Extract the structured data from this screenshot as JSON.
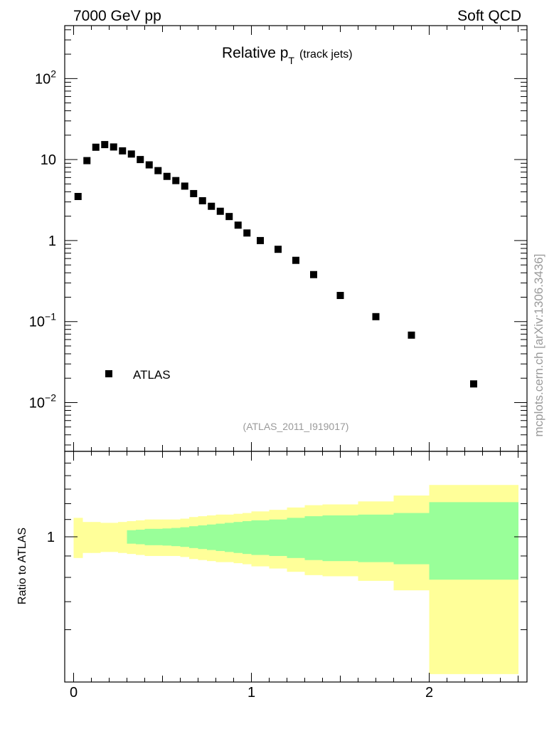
{
  "header": {
    "left": "7000 GeV pp",
    "right": "Soft QCD"
  },
  "side_label": "mcplots.cern.ch [arXiv:1306.3436]",
  "analysis_id": "(ATLAS_2011_I919017)",
  "chart_data": [
    {
      "type": "scatter",
      "panel": "main",
      "title": "Relative p",
      "title_sub": "T",
      "title_suffix": "(track jets)",
      "yscale": "log",
      "xlim": [
        -0.05,
        2.55
      ],
      "ylim": [
        0.0025,
        450
      ],
      "y_tick_labels": [
        {
          "value": 100,
          "base": "10",
          "exp": "2"
        },
        {
          "value": 10,
          "base": "10",
          "exp": ""
        },
        {
          "value": 1,
          "base": "1",
          "exp": ""
        },
        {
          "value": 0.1,
          "base": "10",
          "exp": "−1"
        },
        {
          "value": 0.01,
          "base": "10",
          "exp": "−2"
        }
      ],
      "series": [
        {
          "name": "ATLAS",
          "color": "#000000",
          "points": [
            [
              0.025,
              3.5
            ],
            [
              0.075,
              9.7
            ],
            [
              0.125,
              14.2
            ],
            [
              0.175,
              15.3
            ],
            [
              0.225,
              14.3
            ],
            [
              0.275,
              12.8
            ],
            [
              0.325,
              11.7
            ],
            [
              0.375,
              10.0
            ],
            [
              0.425,
              8.6
            ],
            [
              0.475,
              7.3
            ],
            [
              0.525,
              6.2
            ],
            [
              0.575,
              5.5
            ],
            [
              0.625,
              4.7
            ],
            [
              0.675,
              3.8
            ],
            [
              0.725,
              3.1
            ],
            [
              0.775,
              2.65
            ],
            [
              0.825,
              2.3
            ],
            [
              0.875,
              1.98
            ],
            [
              0.925,
              1.55
            ],
            [
              0.975,
              1.24
            ],
            [
              1.05,
              1.0
            ],
            [
              1.15,
              0.78
            ],
            [
              1.25,
              0.57
            ],
            [
              1.35,
              0.38
            ],
            [
              1.5,
              0.21
            ],
            [
              1.7,
              0.115
            ],
            [
              1.9,
              0.068
            ],
            [
              2.25,
              0.017
            ]
          ]
        }
      ],
      "legend": {
        "position": "bottom-left"
      }
    },
    {
      "type": "area",
      "panel": "ratio",
      "ylabel": "Ratio to ATLAS",
      "xlim": [
        -0.05,
        2.55
      ],
      "ylim": [
        0.45,
        1.6
      ],
      "x_tick_labels": [
        "0",
        "1",
        "2"
      ],
      "y_tick_labels": [
        "1"
      ],
      "bands": [
        {
          "name": "total",
          "color": "#ffff99",
          "bins": [
            [
              0.0,
              0.05,
              0.89,
              1.11
            ],
            [
              0.05,
              0.1,
              0.915,
              1.085
            ],
            [
              0.1,
              0.15,
              0.915,
              1.085
            ],
            [
              0.15,
              0.2,
              0.92,
              1.08
            ],
            [
              0.2,
              0.25,
              0.92,
              1.08
            ],
            [
              0.25,
              0.3,
              0.915,
              1.085
            ],
            [
              0.3,
              0.35,
              0.91,
              1.09
            ],
            [
              0.35,
              0.4,
              0.905,
              1.095
            ],
            [
              0.4,
              0.45,
              0.9,
              1.1
            ],
            [
              0.45,
              0.5,
              0.9,
              1.1
            ],
            [
              0.5,
              0.55,
              0.9,
              1.1
            ],
            [
              0.55,
              0.6,
              0.9,
              1.1
            ],
            [
              0.6,
              0.65,
              0.895,
              1.105
            ],
            [
              0.65,
              0.7,
              0.885,
              1.115
            ],
            [
              0.7,
              0.75,
              0.88,
              1.12
            ],
            [
              0.75,
              0.8,
              0.875,
              1.125
            ],
            [
              0.8,
              0.85,
              0.87,
              1.13
            ],
            [
              0.85,
              0.9,
              0.87,
              1.13
            ],
            [
              0.9,
              0.95,
              0.865,
              1.135
            ],
            [
              0.95,
              1.0,
              0.86,
              1.14
            ],
            [
              1.0,
              1.1,
              0.85,
              1.15
            ],
            [
              1.1,
              1.2,
              0.84,
              1.16
            ],
            [
              1.2,
              1.3,
              0.825,
              1.175
            ],
            [
              1.3,
              1.4,
              0.81,
              1.19
            ],
            [
              1.4,
              1.6,
              0.805,
              1.195
            ],
            [
              1.6,
              1.8,
              0.785,
              1.215
            ],
            [
              1.8,
              2.0,
              0.745,
              1.255
            ],
            [
              2.0,
              2.5,
              0.47,
              1.33
            ]
          ]
        },
        {
          "name": "stat",
          "color": "#99ff99",
          "bins": [
            [
              0.3,
              0.35,
              0.963,
              1.037
            ],
            [
              0.35,
              0.4,
              0.96,
              1.04
            ],
            [
              0.4,
              0.45,
              0.955,
              1.045
            ],
            [
              0.45,
              0.5,
              0.955,
              1.045
            ],
            [
              0.5,
              0.55,
              0.953,
              1.047
            ],
            [
              0.55,
              0.6,
              0.95,
              1.05
            ],
            [
              0.6,
              0.65,
              0.946,
              1.054
            ],
            [
              0.65,
              0.7,
              0.94,
              1.06
            ],
            [
              0.7,
              0.75,
              0.935,
              1.065
            ],
            [
              0.75,
              0.8,
              0.93,
              1.07
            ],
            [
              0.8,
              0.85,
              0.925,
              1.075
            ],
            [
              0.85,
              0.9,
              0.92,
              1.08
            ],
            [
              0.9,
              0.95,
              0.915,
              1.085
            ],
            [
              0.95,
              1.0,
              0.91,
              1.09
            ],
            [
              1.0,
              1.1,
              0.905,
              1.095
            ],
            [
              1.1,
              1.2,
              0.9,
              1.1
            ],
            [
              1.2,
              1.3,
              0.89,
              1.11
            ],
            [
              1.3,
              1.4,
              0.88,
              1.12
            ],
            [
              1.4,
              1.6,
              0.875,
              1.125
            ],
            [
              1.6,
              1.8,
              0.87,
              1.13
            ],
            [
              1.8,
              2.0,
              0.86,
              1.14
            ],
            [
              2.0,
              2.5,
              0.79,
              1.21
            ]
          ]
        }
      ]
    }
  ]
}
